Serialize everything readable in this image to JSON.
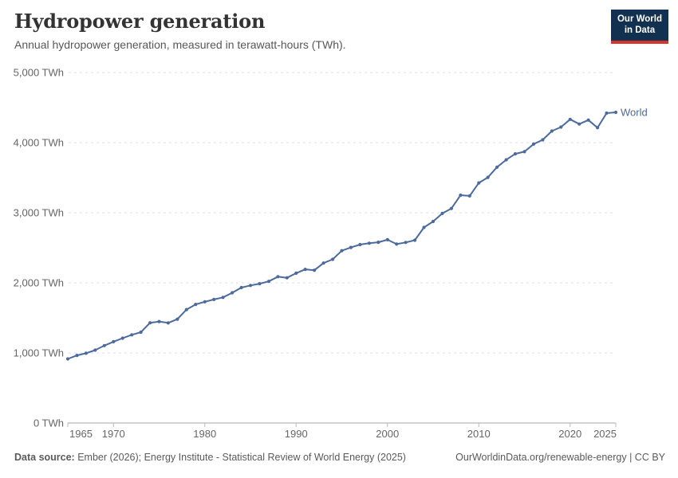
{
  "header": {
    "title": "Hydropower generation",
    "subtitle": "Annual hydropower generation, measured in terawatt-hours (TWh).",
    "logo": {
      "line1": "Our World",
      "line2": "in Data"
    }
  },
  "chart_data": {
    "type": "line",
    "title": "Hydropower generation",
    "xlabel": "",
    "ylabel": "TWh",
    "xlim": [
      1965,
      2025
    ],
    "ylim": [
      0,
      5000
    ],
    "grid": "horizontal-dashed",
    "legend": "end-of-line-label",
    "x": [
      1965,
      1966,
      1967,
      1968,
      1969,
      1970,
      1971,
      1972,
      1973,
      1974,
      1975,
      1976,
      1977,
      1978,
      1979,
      1980,
      1981,
      1982,
      1983,
      1984,
      1985,
      1986,
      1987,
      1988,
      1989,
      1990,
      1991,
      1992,
      1993,
      1994,
      1995,
      1996,
      1997,
      1998,
      1999,
      2000,
      2001,
      2002,
      2003,
      2004,
      2005,
      2006,
      2007,
      2008,
      2009,
      2010,
      2011,
      2012,
      2013,
      2014,
      2015,
      2016,
      2017,
      2018,
      2019,
      2020,
      2021,
      2022,
      2023,
      2024,
      2025
    ],
    "series": [
      {
        "name": "World",
        "color": "#4C6A9C",
        "values": [
          915,
          965,
          995,
          1040,
          1105,
          1160,
          1210,
          1258,
          1295,
          1430,
          1448,
          1428,
          1482,
          1618,
          1692,
          1730,
          1762,
          1792,
          1858,
          1932,
          1962,
          1988,
          2020,
          2088,
          2072,
          2138,
          2192,
          2180,
          2282,
          2335,
          2458,
          2505,
          2545,
          2565,
          2578,
          2615,
          2552,
          2576,
          2608,
          2790,
          2875,
          2990,
          3060,
          3250,
          3240,
          3425,
          3505,
          3650,
          3755,
          3840,
          3870,
          3978,
          4040,
          4165,
          4222,
          4332,
          4265,
          4322,
          4212,
          4420,
          4432
        ]
      }
    ],
    "y_ticks": [
      {
        "value": 0,
        "label": "0 TWh"
      },
      {
        "value": 1000,
        "label": "1,000 TWh"
      },
      {
        "value": 2000,
        "label": "2,000 TWh"
      },
      {
        "value": 3000,
        "label": "3,000 TWh"
      },
      {
        "value": 4000,
        "label": "4,000 TWh"
      },
      {
        "value": 5000,
        "label": "5,000 TWh"
      }
    ],
    "x_ticks": [
      {
        "value": 1965,
        "label": "1965"
      },
      {
        "value": 1970,
        "label": "1970"
      },
      {
        "value": 1980,
        "label": "1980"
      },
      {
        "value": 1990,
        "label": "1990"
      },
      {
        "value": 2000,
        "label": "2000"
      },
      {
        "value": 2010,
        "label": "2010"
      },
      {
        "value": 2020,
        "label": "2020"
      },
      {
        "value": 2025,
        "label": "2025"
      }
    ]
  },
  "footer": {
    "source_label": "Data source:",
    "source_text": " Ember (2026); Energy Institute - Statistical Review of World Energy (2025)",
    "link_text": "OurWorldinData.org/renewable-energy | CC BY"
  },
  "colors": {
    "line": "#4C6A9C",
    "grid": "#dcdcdc",
    "axis": "#a5a5a5",
    "tick_text": "#666666",
    "logo_bg": "#12304f",
    "logo_bar": "#d5352b",
    "title_text": "#333333",
    "muted_text": "#5a5a5a"
  }
}
